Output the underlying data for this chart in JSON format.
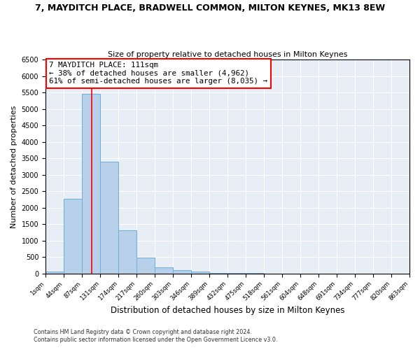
{
  "title": "7, MAYDITCH PLACE, BRADWELL COMMON, MILTON KEYNES, MK13 8EW",
  "subtitle": "Size of property relative to detached houses in Milton Keynes",
  "xlabel": "Distribution of detached houses by size in Milton Keynes",
  "ylabel": "Number of detached properties",
  "bar_color": "#b8d0ea",
  "bar_edge_color": "#6baed6",
  "background_color": "#e8eef6",
  "grid_color": "#ffffff",
  "vline_color": "red",
  "vline_x": 111,
  "annotation_title": "7 MAYDITCH PLACE: 111sqm",
  "annotation_line1": "← 38% of detached houses are smaller (4,962)",
  "annotation_line2": "61% of semi-detached houses are larger (8,035) →",
  "footer1": "Contains HM Land Registry data © Crown copyright and database right 2024.",
  "footer2": "Contains public sector information licensed under the Open Government Licence v3.0.",
  "bin_edges": [
    1,
    44,
    87,
    131,
    174,
    217,
    260,
    303,
    346,
    389,
    432,
    475,
    518,
    561,
    604,
    648,
    691,
    734,
    777,
    820,
    863
  ],
  "bin_heights": [
    55,
    2280,
    5460,
    3390,
    1320,
    480,
    190,
    100,
    55,
    25,
    10,
    5,
    3,
    2,
    1,
    1,
    1,
    0,
    0,
    0
  ],
  "ylim": [
    0,
    6500
  ],
  "yticks": [
    0,
    500,
    1000,
    1500,
    2000,
    2500,
    3000,
    3500,
    4000,
    4500,
    5000,
    5500,
    6000,
    6500
  ]
}
